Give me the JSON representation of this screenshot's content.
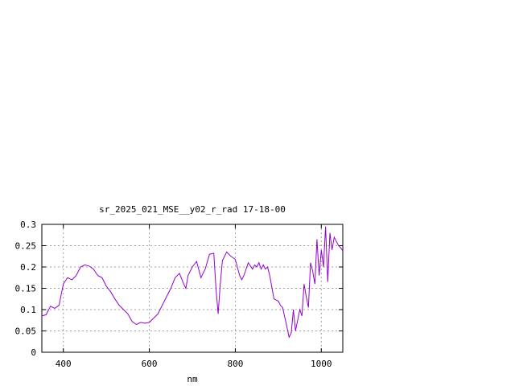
{
  "chart_data": {
    "type": "line",
    "title": "sr_2025_021_MSE__y02_r_rad 17-18-00",
    "xlabel": "nm",
    "ylabel": "",
    "xlim": [
      350,
      1050
    ],
    "ylim": [
      0,
      0.3
    ],
    "x_ticks": [
      400,
      600,
      800,
      1000
    ],
    "x_tick_labels": [
      "400",
      "600",
      "800",
      "1000"
    ],
    "y_ticks": [
      0,
      0.05,
      0.1,
      0.15,
      0.2,
      0.25,
      0.3
    ],
    "y_tick_labels": [
      "0",
      "0.05",
      "0.1",
      "0.15",
      "0.2",
      "0.25",
      "0.3"
    ],
    "grid": true,
    "line_color": "#9400d3",
    "series": [
      {
        "x": [
          350,
          360,
          370,
          380,
          390,
          400,
          405,
          410,
          420,
          430,
          440,
          450,
          460,
          470,
          480,
          490,
          500,
          510,
          520,
          530,
          540,
          550,
          560,
          570,
          580,
          590,
          600,
          610,
          620,
          630,
          640,
          650,
          660,
          670,
          680,
          685,
          690,
          700,
          710,
          720,
          730,
          740,
          750,
          755,
          760,
          765,
          770,
          780,
          790,
          800,
          810,
          815,
          820,
          830,
          840,
          845,
          850,
          855,
          860,
          865,
          870,
          875,
          880,
          890,
          900,
          905,
          910,
          920,
          925,
          930,
          935,
          940,
          945,
          950,
          955,
          960,
          965,
          970,
          975,
          980,
          985,
          990,
          995,
          1000,
          1005,
          1010,
          1015,
          1020,
          1025,
          1030,
          1035,
          1040,
          1045,
          1050
        ],
        "y": [
          0.085,
          0.088,
          0.108,
          0.103,
          0.11,
          0.16,
          0.168,
          0.175,
          0.17,
          0.18,
          0.2,
          0.205,
          0.202,
          0.195,
          0.18,
          0.175,
          0.155,
          0.142,
          0.125,
          0.11,
          0.1,
          0.09,
          0.072,
          0.065,
          0.07,
          0.068,
          0.07,
          0.08,
          0.09,
          0.11,
          0.13,
          0.15,
          0.175,
          0.185,
          0.16,
          0.15,
          0.18,
          0.2,
          0.213,
          0.175,
          0.195,
          0.23,
          0.232,
          0.15,
          0.09,
          0.16,
          0.215,
          0.235,
          0.225,
          0.218,
          0.18,
          0.17,
          0.18,
          0.21,
          0.195,
          0.205,
          0.2,
          0.21,
          0.195,
          0.205,
          0.195,
          0.2,
          0.18,
          0.125,
          0.12,
          0.11,
          0.105,
          0.06,
          0.035,
          0.045,
          0.1,
          0.05,
          0.075,
          0.1,
          0.085,
          0.16,
          0.13,
          0.105,
          0.21,
          0.19,
          0.16,
          0.265,
          0.18,
          0.24,
          0.2,
          0.295,
          0.165,
          0.28,
          0.24,
          0.27,
          0.26,
          0.25,
          0.245,
          0.238
        ]
      }
    ]
  }
}
